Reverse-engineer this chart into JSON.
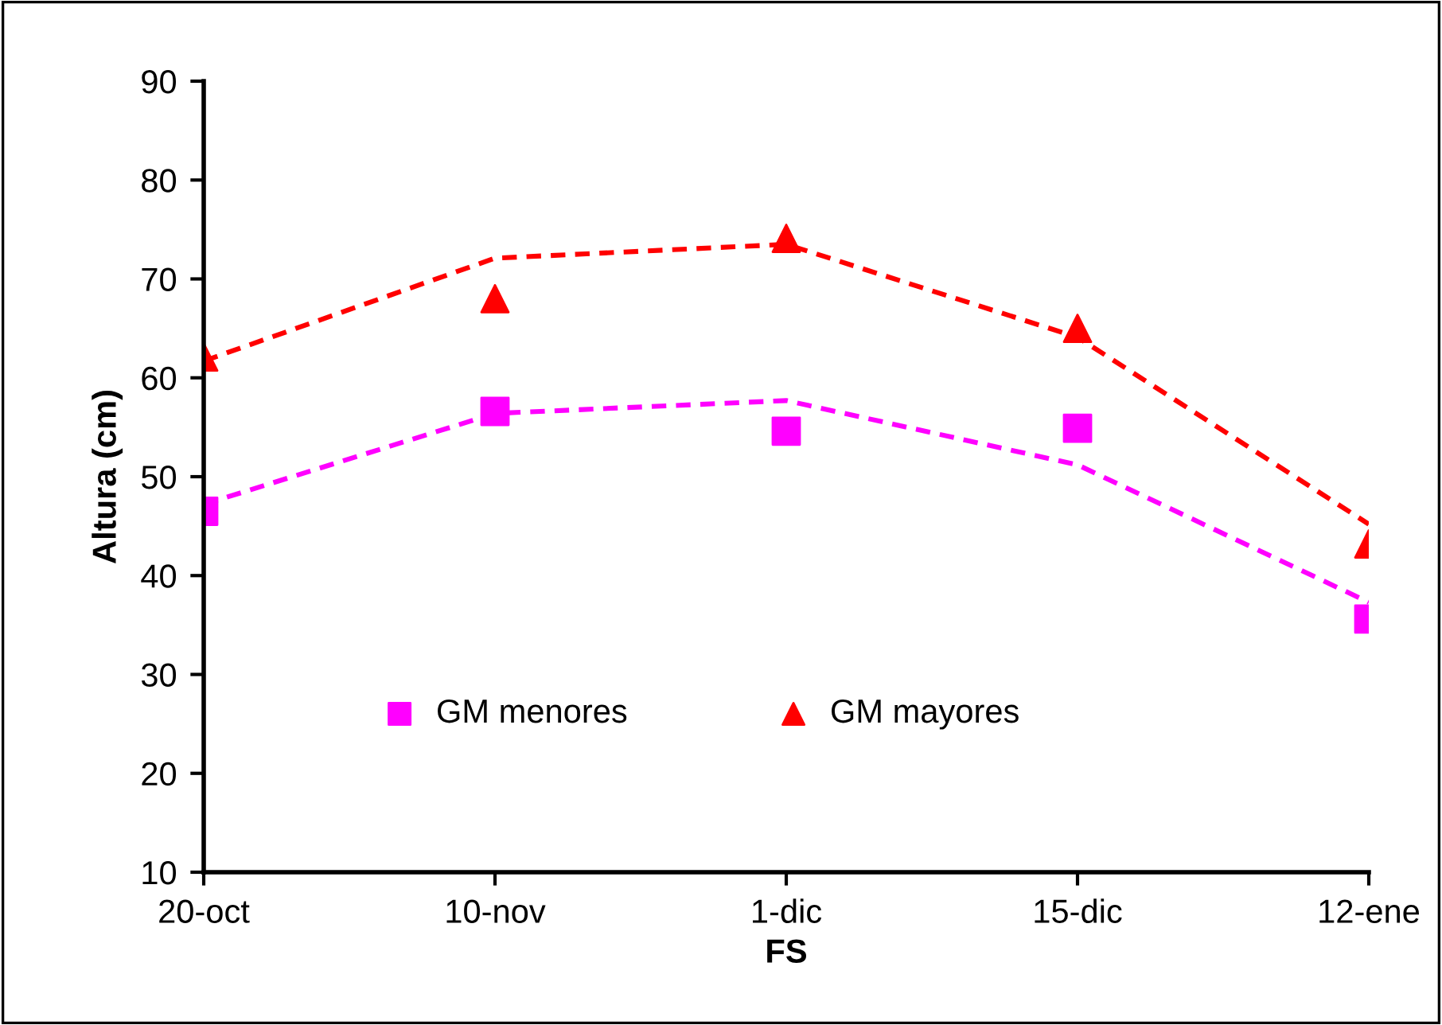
{
  "chart_data": {
    "type": "scatter",
    "xlabel": "FS",
    "ylabel": "Altura (cm)",
    "categories": [
      "20-oct",
      "10-nov",
      "1-dic",
      "15-dic",
      "12-ene"
    ],
    "ylim": [
      10,
      90
    ],
    "yticks": [
      10,
      20,
      30,
      40,
      50,
      60,
      70,
      80,
      90
    ],
    "grid": false,
    "legend": "bottom",
    "series": [
      {
        "name": "GM menores",
        "marker": "square",
        "color": "#ff00ff",
        "values": [
          46.5,
          56.6,
          54.6,
          54.9,
          35.6
        ]
      },
      {
        "name": "GM mayores",
        "marker": "triangle",
        "color": "#ff0000",
        "values": [
          62.1,
          68.0,
          74.1,
          65.0,
          43.2
        ]
      },
      {
        "type": "line",
        "marker": "none",
        "line_style": "dashed",
        "color": "#ff00ff",
        "values": [
          47.2,
          56.4,
          57.7,
          51.2,
          37.3
        ]
      },
      {
        "type": "line",
        "marker": "none",
        "line_style": "dashed",
        "color": "#ff0000",
        "values": [
          61.7,
          72.1,
          73.5,
          64.1,
          45.2
        ]
      }
    ]
  }
}
